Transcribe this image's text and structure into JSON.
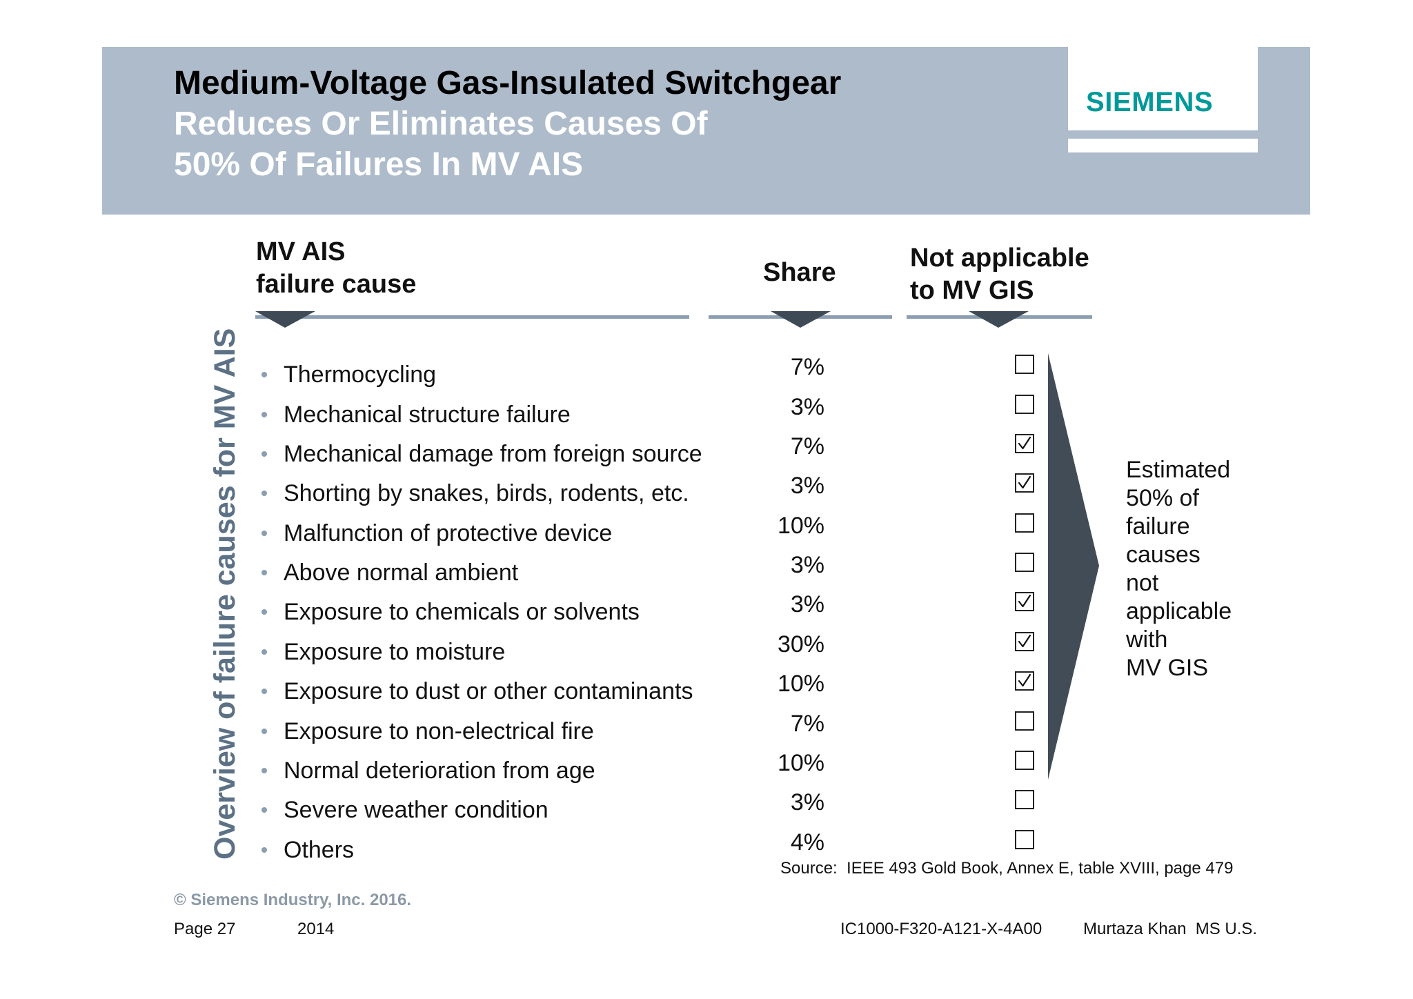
{
  "header": {
    "title": "Medium-Voltage Gas-Insulated Switchgear",
    "subtitle_lines": [
      "Reduces Or Eliminates Causes Of",
      "50% Of Failures In MV AIS"
    ],
    "logo": "SIEMENS"
  },
  "side_label": "Overview of failure causes for MV AIS",
  "columns": {
    "cause": [
      "MV AIS",
      "failure cause"
    ],
    "share": "Share",
    "not_applicable": [
      "Not applicable",
      "to MV GIS"
    ]
  },
  "rows": [
    {
      "cause": "Thermocycling",
      "share": "7%",
      "not_applicable": false
    },
    {
      "cause": "Mechanical structure failure",
      "share": "3%",
      "not_applicable": false
    },
    {
      "cause": "Mechanical damage from foreign source",
      "share": "7%",
      "not_applicable": true
    },
    {
      "cause": "Shorting by snakes, birds, rodents, etc.",
      "share": "3%",
      "not_applicable": true
    },
    {
      "cause": "Malfunction of protective device",
      "share": "10%",
      "not_applicable": false
    },
    {
      "cause": "Above normal ambient",
      "share": "3%",
      "not_applicable": false
    },
    {
      "cause": "Exposure to chemicals or solvents",
      "share": "3%",
      "not_applicable": true
    },
    {
      "cause": "Exposure to moisture",
      "share": "30%",
      "not_applicable": true
    },
    {
      "cause": "Exposure to dust or other contaminants",
      "share": "10%",
      "not_applicable": true
    },
    {
      "cause": "Exposure to non-electrical fire",
      "share": "7%",
      "not_applicable": false
    },
    {
      "cause": "Normal deterioration from age",
      "share": "10%",
      "not_applicable": false
    },
    {
      "cause": "Severe weather condition",
      "share": "3%",
      "not_applicable": false
    },
    {
      "cause": "Others",
      "share": "4%",
      "not_applicable": false
    }
  ],
  "summary": [
    "Estimated",
    "50% of",
    "failure",
    "causes",
    "not",
    "applicable",
    "with",
    "MV GIS"
  ],
  "source": "Source:  IEEE 493 Gold Book, Annex E, table XVIII, page 479",
  "footer": {
    "copyright": "© Siemens Industry, Inc. 2016.",
    "page": "Page 27",
    "year": "2014",
    "doc_id": "IC1000-F320-A121-X-4A00",
    "author": "Murtaza Khan  MS U.S."
  },
  "colors": {
    "header_band": "#adbbcb",
    "logo": "#009999",
    "side_label": "#5c7186",
    "rule": "#8b9db0",
    "marker": "#3e4a56",
    "arrow": "#414c57",
    "copyright": "#8c99a6"
  }
}
